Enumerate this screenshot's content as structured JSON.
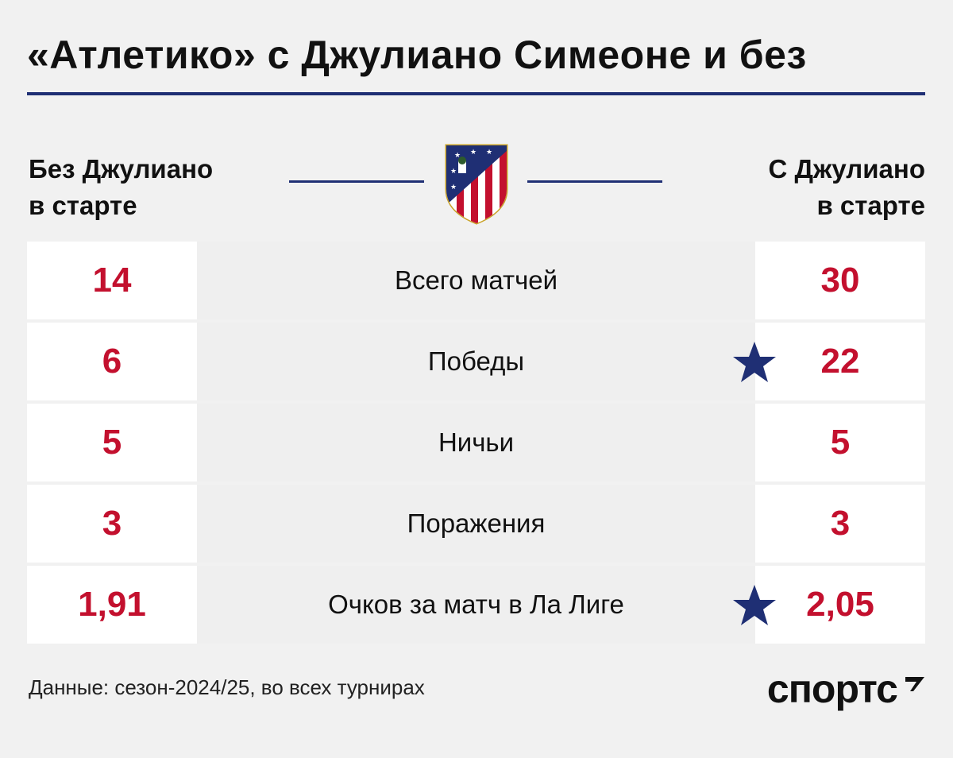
{
  "title": "«Атлетико» с Джулиано Симеоне и без",
  "header": {
    "left_line1": "Без Джулиано",
    "left_line2": "в старте",
    "right_line1": "С Джулиано",
    "right_line2": "в старте",
    "crest_icon": "atletico-madrid-crest"
  },
  "colors": {
    "accent_navy": "#1f2f74",
    "value_red": "#c3102e"
  },
  "rows": [
    {
      "label": "Всего матчей",
      "without": "14",
      "with": "30",
      "star": false
    },
    {
      "label": "Победы",
      "without": "6",
      "with": "22",
      "star": true
    },
    {
      "label": "Ничьи",
      "without": "5",
      "with": "5",
      "star": false
    },
    {
      "label": "Поражения",
      "without": "3",
      "with": "3",
      "star": false
    },
    {
      "label": "Очков за матч в Ла Лиге",
      "without": "1,91",
      "with": "2,05",
      "star": true
    }
  ],
  "footer": {
    "note": "Данные: сезон-2024/25, во всех турнирах",
    "logo": "спортс"
  }
}
